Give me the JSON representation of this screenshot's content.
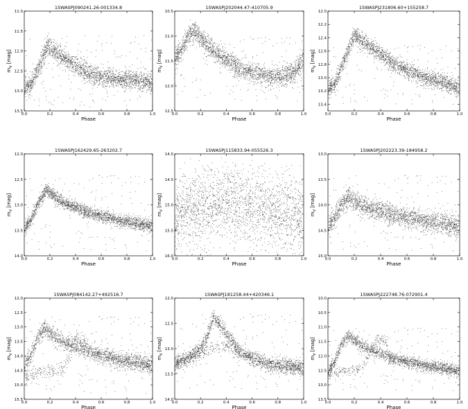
{
  "figure": {
    "colors": {
      "points": "#3a3a3a",
      "axes": "#000000",
      "background": "#ffffff"
    }
  },
  "chart_data": [
    {
      "type": "scatter",
      "title": "1SWASPJ090241.26-001334.8",
      "xlabel": "Phase",
      "ylabel": "m",
      "ylabel_sub": "V",
      "ylabel_unit": "[mag]",
      "xlim": [
        0.0,
        1.0
      ],
      "ylim": [
        11.0,
        13.5
      ],
      "y_inverted": true,
      "xticks": [
        "0.0",
        "0.2",
        "0.4",
        "0.6",
        "0.8",
        "1.0"
      ],
      "yticks": [
        "11.0",
        "11.5",
        "12.0",
        "12.5",
        "13.0",
        "13.5"
      ],
      "ytick_values": [
        11.0,
        11.5,
        12.0,
        12.5,
        13.0,
        13.5
      ],
      "curve": {
        "phase": [
          0.0,
          0.05,
          0.1,
          0.18,
          0.3,
          0.5,
          0.7,
          0.85,
          1.0
        ],
        "mag": [
          12.9,
          12.85,
          12.5,
          11.85,
          12.15,
          12.55,
          12.72,
          12.7,
          12.8
        ]
      },
      "spread": 0.12,
      "outlier_range": [
        11.6,
        13.4
      ]
    },
    {
      "type": "scatter",
      "title": "1SWASPJ202044.47-410705.9",
      "xlabel": "Phase",
      "ylabel": "m",
      "ylabel_sub": "V",
      "ylabel_unit": "[mag]",
      "xlim": [
        0.0,
        1.0
      ],
      "ylim": [
        10.5,
        12.5
      ],
      "y_inverted": true,
      "xticks": [
        "0.0",
        "0.2",
        "0.4",
        "0.6",
        "0.8",
        "1.0"
      ],
      "yticks": [
        "10.5",
        "11.0",
        "11.5",
        "12.0",
        "12.5"
      ],
      "ytick_values": [
        10.5,
        11.0,
        11.5,
        12.0,
        12.5
      ],
      "curve": {
        "phase": [
          0.0,
          0.05,
          0.1,
          0.15,
          0.3,
          0.5,
          0.7,
          0.85,
          0.93,
          1.0
        ],
        "mag": [
          11.4,
          11.3,
          11.0,
          10.9,
          11.3,
          11.65,
          11.8,
          11.8,
          11.7,
          11.4
        ]
      },
      "spread": 0.1,
      "outlier_range": [
        11.0,
        12.3
      ]
    },
    {
      "type": "scatter",
      "title": "1SWASPJ231806.60+155258.7",
      "xlabel": "Phase",
      "ylabel": "m",
      "ylabel_sub": "V",
      "ylabel_unit": "[mag]",
      "xlim": [
        0.0,
        1.0
      ],
      "ylim": [
        12.0,
        13.5
      ],
      "y_inverted": true,
      "xticks": [
        "0.0",
        "0.2",
        "0.4",
        "0.6",
        "0.8",
        "1.0"
      ],
      "yticks": [
        "12.0",
        "12.2",
        "12.4",
        "12.6",
        "12.8",
        "13.0",
        "13.2",
        "13.4"
      ],
      "ytick_values": [
        12.0,
        12.2,
        12.4,
        12.6,
        12.8,
        13.0,
        13.2,
        13.4
      ],
      "curve": {
        "phase": [
          0.0,
          0.05,
          0.1,
          0.2,
          0.3,
          0.5,
          0.7,
          0.85,
          1.0
        ],
        "mag": [
          13.15,
          13.1,
          12.85,
          12.35,
          12.5,
          12.8,
          12.98,
          13.05,
          13.15
        ]
      },
      "spread": 0.06,
      "outlier_range": [
        12.5,
        13.4
      ]
    },
    {
      "type": "scatter",
      "title": "1SWASPJ162429.65-263202.7",
      "xlabel": "Phase",
      "ylabel": "m",
      "ylabel_sub": "V",
      "ylabel_unit": "[mag]",
      "xlim": [
        0.0,
        1.0
      ],
      "ylim": [
        12.0,
        14.0
      ],
      "y_inverted": true,
      "xticks": [
        "0.0",
        "0.2",
        "0.4",
        "0.6",
        "0.8",
        "1.0"
      ],
      "yticks": [
        "12.0",
        "12.5",
        "13.0",
        "13.5",
        "14.0"
      ],
      "ytick_values": [
        12.0,
        12.5,
        13.0,
        13.5,
        14.0
      ],
      "curve": {
        "phase": [
          0.0,
          0.05,
          0.1,
          0.17,
          0.3,
          0.5,
          0.7,
          0.85,
          1.0
        ],
        "mag": [
          13.45,
          13.3,
          13.0,
          12.7,
          12.95,
          13.15,
          13.28,
          13.35,
          13.4
        ]
      },
      "spread": 0.06,
      "outlier_range": [
        12.4,
        13.9
      ]
    },
    {
      "type": "scatter",
      "title": "1SWASPJ115833.94-055526.3",
      "xlabel": "Phase",
      "ylabel": "m",
      "ylabel_sub": "V",
      "ylabel_unit": "[mag]",
      "xlim": [
        0.0,
        1.0
      ],
      "ylim": [
        14.0,
        16.0
      ],
      "y_inverted": true,
      "xticks": [
        "0.0",
        "0.2",
        "0.4",
        "0.6",
        "0.8",
        "1.0"
      ],
      "yticks": [
        "14.0",
        "14.5",
        "15.0",
        "15.5",
        "16.0"
      ],
      "ytick_values": [
        14.0,
        14.5,
        15.0,
        15.5,
        16.0
      ],
      "curve": {
        "phase": [
          0.0,
          0.2,
          0.4,
          0.6,
          0.8,
          1.0
        ],
        "mag": [
          15.2,
          15.05,
          14.95,
          15.05,
          15.15,
          15.15
        ]
      },
      "spread": 0.35,
      "outlier_range": [
        14.2,
        15.95
      ]
    },
    {
      "type": "scatter",
      "title": "1SWASPJ202223.39-184958.2",
      "xlabel": "Phase",
      "ylabel": "m",
      "ylabel_sub": "V",
      "ylabel_unit": "[mag]",
      "xlim": [
        0.0,
        1.0
      ],
      "ylim": [
        13.0,
        15.0
      ],
      "y_inverted": true,
      "xticks": [
        "0.0",
        "0.2",
        "0.4",
        "0.6",
        "0.8",
        "1.0"
      ],
      "yticks": [
        "13.0",
        "13.5",
        "14.0",
        "14.5",
        "15.0"
      ],
      "ytick_values": [
        13.0,
        13.5,
        14.0,
        14.5,
        15.0
      ],
      "curve": {
        "phase": [
          0.0,
          0.05,
          0.1,
          0.15,
          0.3,
          0.5,
          0.7,
          0.85,
          1.0
        ],
        "mag": [
          14.4,
          14.25,
          14.0,
          13.85,
          14.05,
          14.2,
          14.3,
          14.35,
          14.4
        ]
      },
      "spread": 0.1,
      "outlier_range": [
        13.4,
        14.9
      ]
    },
    {
      "type": "scatter",
      "title": "1SWASPJ084142.27+492516.7",
      "xlabel": "Phase",
      "ylabel": "m",
      "ylabel_sub": "V",
      "ylabel_unit": "[mag]",
      "xlim": [
        0.0,
        1.0
      ],
      "ylim": [
        12.0,
        15.5
      ],
      "y_inverted": true,
      "xticks": [
        "0.0",
        "0.2",
        "0.4",
        "0.6",
        "0.8",
        "1.0"
      ],
      "yticks": [
        "12.0",
        "12.5",
        "13.0",
        "13.5",
        "14.0",
        "14.5",
        "15.0",
        "15.5"
      ],
      "ytick_values": [
        12.0,
        12.5,
        13.0,
        13.5,
        14.0,
        14.5,
        15.0,
        15.5
      ],
      "curve": {
        "phase": [
          0.0,
          0.05,
          0.1,
          0.15,
          0.3,
          0.5,
          0.7,
          0.85,
          1.0
        ],
        "mag": [
          14.3,
          14.0,
          13.4,
          13.05,
          13.5,
          13.85,
          14.1,
          14.2,
          14.3
        ]
      },
      "curve2": {
        "phase": [
          0.0,
          0.1,
          0.2,
          0.3,
          0.35,
          0.4,
          0.5
        ],
        "mag": [
          14.7,
          14.6,
          14.5,
          14.5,
          14.0,
          13.35,
          13.65
        ]
      },
      "spread": 0.14,
      "outlier_range": [
        12.6,
        15.3
      ]
    },
    {
      "type": "scatter",
      "title": "1SWASPJ181258.44+420346.1",
      "xlabel": "Phase",
      "ylabel": "m",
      "ylabel_sub": "V",
      "ylabel_unit": "[mag]",
      "xlim": [
        0.0,
        1.0
      ],
      "ylim": [
        12.0,
        14.0
      ],
      "y_inverted": true,
      "xticks": [
        "0.0",
        "0.2",
        "0.4",
        "0.6",
        "0.8",
        "1.0"
      ],
      "yticks": [
        "12.0",
        "12.5",
        "13.0",
        "13.5",
        "14.0"
      ],
      "ytick_values": [
        12.0,
        12.5,
        13.0,
        13.5,
        14.0
      ],
      "curve": {
        "phase": [
          0.0,
          0.1,
          0.2,
          0.25,
          0.3,
          0.4,
          0.5,
          0.6,
          0.7,
          0.85,
          1.0
        ],
        "mag": [
          13.3,
          13.2,
          13.0,
          12.75,
          12.35,
          12.7,
          13.05,
          13.2,
          13.3,
          13.35,
          13.35
        ]
      },
      "curve2": {
        "phase": [
          0.0,
          0.15,
          0.3,
          0.4,
          0.5,
          0.65,
          0.8,
          1.0
        ],
        "mag": [
          13.25,
          13.15,
          13.0,
          12.95,
          13.05,
          13.2,
          13.3,
          13.35
        ]
      },
      "spread": 0.07,
      "outlier_range": [
        12.3,
        13.8
      ]
    },
    {
      "type": "scatter",
      "title": "1SWASPJ222748.76-072901.4",
      "xlabel": "Phase",
      "ylabel": "m",
      "ylabel_sub": "V",
      "ylabel_unit": "[mag]",
      "xlim": [
        0.0,
        1.0
      ],
      "ylim": [
        10.0,
        13.5
      ],
      "y_inverted": true,
      "xticks": [
        "0.0",
        "0.2",
        "0.4",
        "0.6",
        "0.8",
        "1.0"
      ],
      "yticks": [
        "10.0",
        "10.5",
        "11.0",
        "11.5",
        "12.0",
        "12.5",
        "13.0",
        "13.5"
      ],
      "ytick_values": [
        10.0,
        10.5,
        11.0,
        11.5,
        12.0,
        12.5,
        13.0,
        13.5
      ],
      "curve": {
        "phase": [
          0.0,
          0.05,
          0.1,
          0.15,
          0.3,
          0.5,
          0.7,
          0.85,
          1.0
        ],
        "mag": [
          12.5,
          12.2,
          11.6,
          11.3,
          11.75,
          12.1,
          12.3,
          12.4,
          12.5
        ]
      },
      "curve2": {
        "phase": [
          0.0,
          0.1,
          0.2,
          0.28,
          0.33,
          0.37,
          0.45
        ],
        "mag": [
          12.6,
          12.55,
          12.5,
          12.3,
          11.7,
          11.4,
          11.55
        ]
      },
      "spread": 0.1,
      "outlier_range": [
        11.0,
        13.2
      ]
    }
  ]
}
